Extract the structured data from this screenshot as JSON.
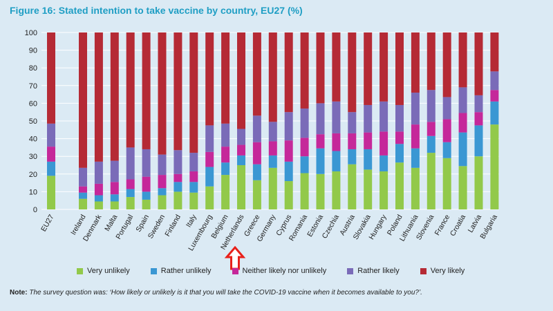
{
  "chart_data": {
    "type": "bar",
    "stacked": true,
    "title": "Figure 16: Stated intention to take vaccine by country, EU27 (%)",
    "xlabel": "",
    "ylabel": "",
    "ylim": [
      0,
      100
    ],
    "yticks": [
      0,
      10,
      20,
      30,
      40,
      50,
      60,
      70,
      80,
      90,
      100
    ],
    "grid": true,
    "legend_position": "bottom",
    "categories": [
      "EU27",
      "Ireland",
      "Denmark",
      "Malta",
      "Portugal",
      "Spain",
      "Sweden",
      "Finland",
      "Italy",
      "Luxembourg",
      "Belgium",
      "Netherlands",
      "Greece",
      "Germany",
      "Cyprus",
      "Romania",
      "Estonia",
      "Czechia",
      "Austria",
      "Slovakia",
      "Hungary",
      "Poland",
      "Lithuania",
      "Slovenia",
      "France",
      "Croatia",
      "Latvia",
      "Bulgaria"
    ],
    "series": [
      {
        "name": "Very unlikely",
        "color": "#92c94a",
        "values": [
          19,
          6,
          4.5,
          4.5,
          7,
          5.5,
          8,
          10,
          9.5,
          13,
          19.5,
          25,
          16.5,
          23.5,
          16,
          20.5,
          20,
          21.5,
          25.5,
          22.5,
          21.5,
          26.5,
          23.5,
          32,
          29,
          24.5,
          30,
          48
        ]
      },
      {
        "name": "Rather unlikely",
        "color": "#3a97d3",
        "values": [
          8,
          3.5,
          3.5,
          4,
          4.5,
          4.5,
          4,
          5.5,
          6,
          11,
          7,
          5.5,
          9,
          7,
          11,
          9.5,
          14.5,
          11.5,
          8.5,
          11.5,
          9,
          10.5,
          11,
          9.5,
          9,
          19,
          17.5,
          13
        ]
      },
      {
        "name": "Neither likely nor unlikely",
        "color": "#c5289a",
        "values": [
          8.5,
          3.5,
          6.5,
          7,
          5.5,
          8.5,
          7.5,
          4.5,
          6,
          8.5,
          9,
          6,
          12.5,
          8,
          12,
          10.5,
          8,
          10,
          9,
          9.5,
          13.5,
          7,
          13.5,
          8,
          13,
          11,
          7.5,
          6.5
        ]
      },
      {
        "name": "Rather likely",
        "color": "#7a6bb8",
        "values": [
          13,
          10.5,
          12.5,
          12,
          18,
          15.5,
          11.5,
          13.5,
          10.5,
          15,
          13,
          9,
          15,
          11,
          16,
          16.5,
          17.5,
          18,
          12,
          15.5,
          17,
          15,
          18,
          18,
          12.5,
          14.5,
          9.5,
          10.5
        ]
      },
      {
        "name": "Very likely",
        "color": "#b52a35",
        "values": [
          51.5,
          76.5,
          73,
          72.5,
          65,
          66,
          69,
          66.5,
          68,
          52.5,
          51.5,
          54.5,
          47,
          50.5,
          45,
          43,
          40,
          39,
          45,
          41,
          39,
          41,
          34,
          32.5,
          36.5,
          31,
          35.5,
          22
        ]
      }
    ]
  },
  "legend": {
    "items": [
      {
        "label": "Very unlikely",
        "color": "#92c94a"
      },
      {
        "label": "Rather unlikely",
        "color": "#3a97d3"
      },
      {
        "label": "Neither likely nor unlikely",
        "color": "#c5289a"
      },
      {
        "label": "Rather likely",
        "color": "#7a6bb8"
      },
      {
        "label": "Very likely",
        "color": "#b52a35"
      }
    ]
  },
  "note": {
    "label": "Note:",
    "text": "The survey question was: ‘How likely or unlikely is it that you will take the COVID-19 vaccine when it becomes available to you?’."
  },
  "annotation": {
    "target": "Netherlands",
    "color": "#e8201a"
  }
}
